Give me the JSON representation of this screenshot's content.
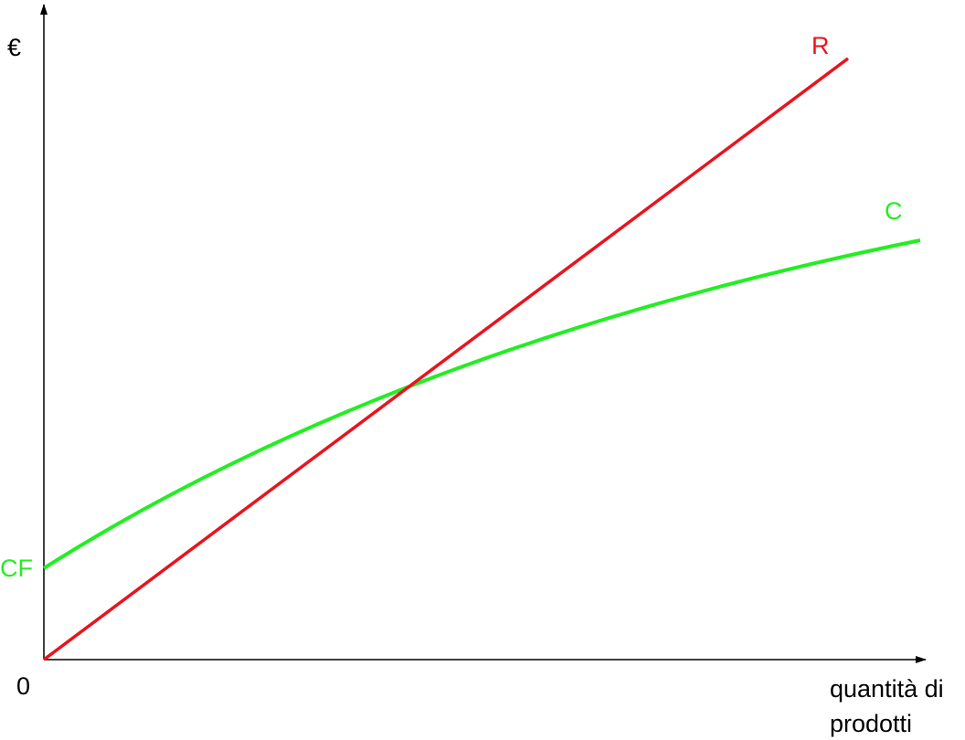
{
  "axes": {
    "y_label": "€",
    "x_label": [
      "quantità di",
      "prodotti"
    ],
    "origin_label": "0"
  },
  "curves": [
    {
      "label": "R"
    },
    {
      "label": "C"
    }
  ],
  "intercept_label": "CF"
}
